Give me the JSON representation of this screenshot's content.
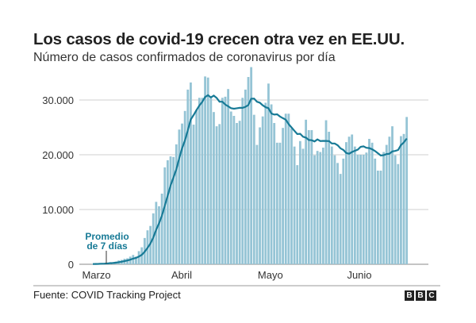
{
  "chart_data": {
    "type": "bar",
    "title": "Los casos de covid-19 crecen otra vez en EE.UU.",
    "subtitle": "Número de casos confirmados de coronavirus por día",
    "source": "Fuente: COVID Tracking Project",
    "logo": "BBC",
    "annotation": "Promedio de 7 días",
    "ylim": [
      0,
      36000
    ],
    "y_ticks": [
      0,
      10000,
      20000,
      30000
    ],
    "y_tick_labels": [
      "0",
      "10.000",
      "20.000",
      "30.000"
    ],
    "x_tick_labels": [
      {
        "label": "Marzo",
        "date": "2020-03-01"
      },
      {
        "label": "Abril",
        "date": "2020-04-01"
      },
      {
        "label": "Mayo",
        "date": "2020-05-01"
      },
      {
        "label": "Junio",
        "date": "2020-06-01"
      }
    ],
    "grid": true,
    "colors": {
      "bars": "#95c4d5",
      "line": "#177a96",
      "grid": "#cfcfcf"
    },
    "series": [
      {
        "name": "Promedio de 7 días",
        "type": "line",
        "note": "7-day average of daily values"
      }
    ],
    "dates": [
      "2020-03-05",
      "2020-03-06",
      "2020-03-07",
      "2020-03-08",
      "2020-03-09",
      "2020-03-10",
      "2020-03-11",
      "2020-03-12",
      "2020-03-13",
      "2020-03-14",
      "2020-03-15",
      "2020-03-16",
      "2020-03-17",
      "2020-03-18",
      "2020-03-19",
      "2020-03-20",
      "2020-03-21",
      "2020-03-22",
      "2020-03-23",
      "2020-03-24",
      "2020-03-25",
      "2020-03-26",
      "2020-03-27",
      "2020-03-28",
      "2020-03-29",
      "2020-03-30",
      "2020-03-31",
      "2020-04-01",
      "2020-04-02",
      "2020-04-03",
      "2020-04-04",
      "2020-04-05",
      "2020-04-06",
      "2020-04-07",
      "2020-04-08",
      "2020-04-09",
      "2020-04-10",
      "2020-04-11",
      "2020-04-12",
      "2020-04-13",
      "2020-04-14",
      "2020-04-15",
      "2020-04-16",
      "2020-04-17",
      "2020-04-18",
      "2020-04-19",
      "2020-04-20",
      "2020-04-21",
      "2020-04-22",
      "2020-04-23",
      "2020-04-24",
      "2020-04-25",
      "2020-04-26",
      "2020-04-27",
      "2020-04-28",
      "2020-04-29",
      "2020-04-30",
      "2020-05-01",
      "2020-05-02",
      "2020-05-03",
      "2020-05-04",
      "2020-05-05",
      "2020-05-06",
      "2020-05-07",
      "2020-05-08",
      "2020-05-09",
      "2020-05-10",
      "2020-05-11",
      "2020-05-12",
      "2020-05-13",
      "2020-05-14",
      "2020-05-15",
      "2020-05-16",
      "2020-05-17",
      "2020-05-18",
      "2020-05-19",
      "2020-05-20",
      "2020-05-21",
      "2020-05-22",
      "2020-05-23",
      "2020-05-24",
      "2020-05-25",
      "2020-05-26",
      "2020-05-27",
      "2020-05-28",
      "2020-05-29",
      "2020-05-30",
      "2020-05-31",
      "2020-06-01",
      "2020-06-02",
      "2020-06-03",
      "2020-06-04",
      "2020-06-05",
      "2020-06-06",
      "2020-06-07",
      "2020-06-08",
      "2020-06-09",
      "2020-06-10",
      "2020-06-11",
      "2020-06-12",
      "2020-06-13",
      "2020-06-14",
      "2020-06-15",
      "2020-06-16",
      "2020-06-17",
      "2020-06-18",
      "2020-06-19",
      "2020-06-20",
      "2020-06-21",
      "2020-06-22"
    ],
    "values": [
      50,
      80,
      100,
      150,
      200,
      300,
      400,
      350,
      500,
      700,
      800,
      1000,
      1100,
      1400,
      1700,
      1400,
      2400,
      3100,
      4800,
      6200,
      7000,
      9300,
      11400,
      10600,
      12900,
      17700,
      19000,
      19700,
      19600,
      21900,
      24600,
      25700,
      28000,
      31900,
      33200,
      25500,
      28200,
      30400,
      30400,
      34300,
      34100,
      30400,
      27800,
      25200,
      25600,
      30400,
      30600,
      32000,
      27900,
      27100,
      25800,
      26200,
      30400,
      31900,
      34200,
      36000,
      27300,
      21800,
      25000,
      27000,
      29500,
      33000,
      29200,
      25800,
      22200,
      22200,
      24900,
      27500,
      27500,
      24800,
      21500,
      18100,
      22500,
      21100,
      26400,
      24500,
      24500,
      19900,
      20700,
      20500,
      21300,
      26300,
      24200,
      21500,
      19900,
      18500,
      16500,
      19300,
      22300,
      23300,
      23700,
      21500,
      20000,
      20000,
      20000,
      20400,
      22900,
      22200,
      19300,
      17100,
      17100,
      20500,
      21800,
      23300,
      25200,
      19900,
      18300,
      23400,
      23800,
      26900
    ]
  }
}
